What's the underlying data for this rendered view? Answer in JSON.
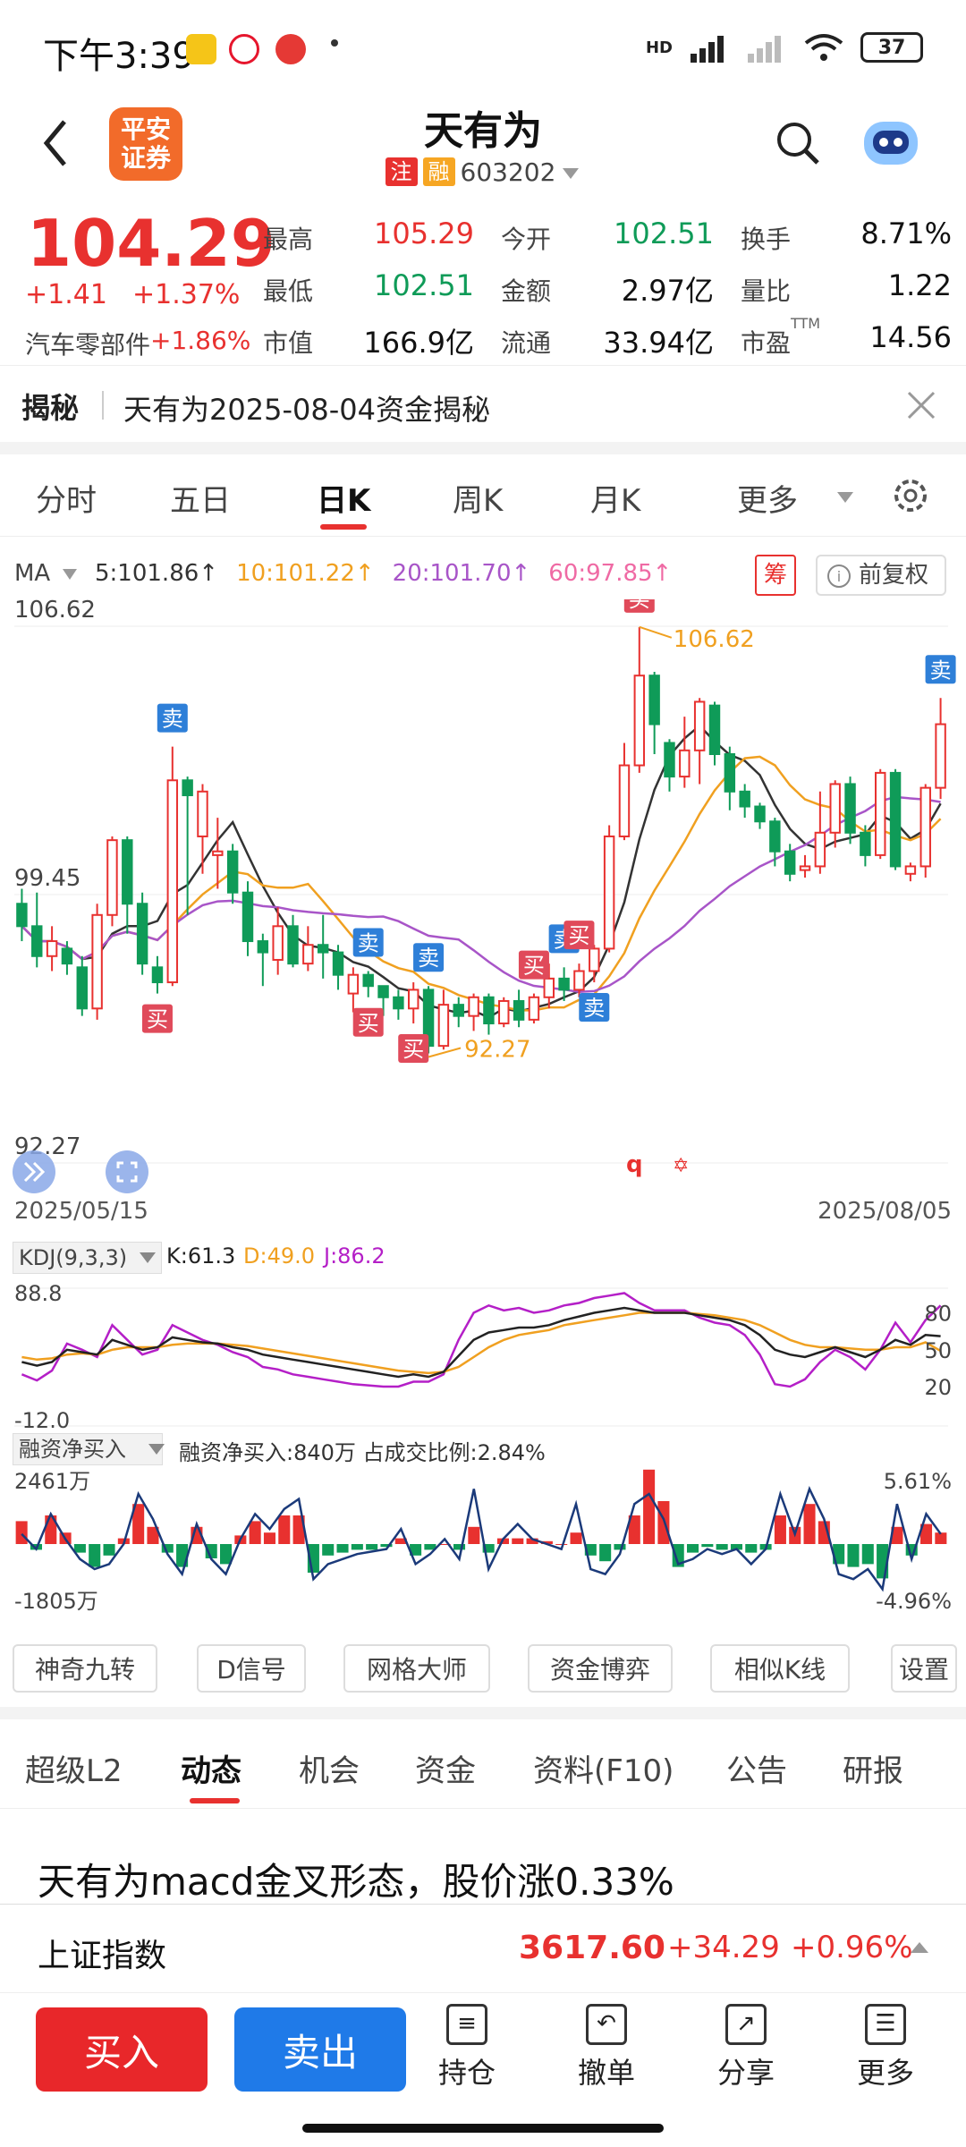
{
  "status": {
    "time": "下午3:39",
    "battery": "37",
    "network": "HD"
  },
  "header": {
    "logo_line1": "平安",
    "logo_line2": "证券",
    "title": "天有为",
    "tag_zhu": "注",
    "tag_rong": "融",
    "code": "603202",
    "colors": {
      "logo": "#f26b2a",
      "tag_zhu": "#e8312f",
      "tag_rong": "#f6a623"
    }
  },
  "quote": {
    "price": "104.29",
    "change": "+1.41",
    "change_pct": "+1.37%",
    "sector": "汽车零部件",
    "sector_pct": "+1.86%",
    "rows": [
      [
        {
          "label": "最高",
          "value": "105.29",
          "color": "red"
        },
        {
          "label": "今开",
          "value": "102.51",
          "color": "green"
        },
        {
          "label": "换手",
          "value": "8.71%",
          "color": "black"
        }
      ],
      [
        {
          "label": "最低",
          "value": "102.51",
          "color": "green"
        },
        {
          "label": "金额",
          "value": "2.97亿",
          "color": "black"
        },
        {
          "label": "量比",
          "value": "1.22",
          "color": "black"
        }
      ],
      [
        {
          "label": "市值",
          "value": "166.9亿",
          "color": "black"
        },
        {
          "label": "流通",
          "value": "33.94亿",
          "color": "black"
        },
        {
          "label": "市盈",
          "value": "14.56",
          "color": "black",
          "sup": "TTM"
        }
      ]
    ]
  },
  "reveal": {
    "label": "揭秘",
    "text": "天有为2025-08-04资金揭秘"
  },
  "period_tabs": [
    "分时",
    "五日",
    "日K",
    "周K",
    "月K",
    "更多"
  ],
  "period_active": 2,
  "ma_legend": {
    "ma_label": "MA",
    "items": [
      {
        "text": "5:101.86↑",
        "color": "#333333"
      },
      {
        "text": "10:101.22↑",
        "color": "#f0a020"
      },
      {
        "text": "20:101.70↑",
        "color": "#a855c8"
      },
      {
        "text": "60:97.85↑",
        "color": "#ef6aa4"
      }
    ],
    "chou": "筹",
    "fuquan": "前复权"
  },
  "chart_data": {
    "type": "candlestick",
    "y_labels": [
      "106.62",
      "99.45",
      "92.27"
    ],
    "ylim": [
      92.27,
      106.62
    ],
    "max_label": "106.62",
    "min_label": "92.27",
    "x_start": "2025/05/15",
    "x_end": "2025/08/05",
    "candles": [
      [
        99.2,
        98.6,
        99.6,
        98.2
      ],
      [
        98.6,
        97.8,
        99.5,
        97.5
      ],
      [
        97.8,
        98.2,
        98.6,
        97.4
      ],
      [
        98.0,
        97.6,
        98.2,
        97.3
      ],
      [
        97.5,
        96.4,
        97.8,
        96.2
      ],
      [
        96.4,
        98.9,
        99.2,
        96.1
      ],
      [
        98.9,
        100.9,
        101.0,
        98.6
      ],
      [
        100.9,
        99.2,
        101.0,
        98.4
      ],
      [
        99.2,
        97.6,
        99.5,
        97.3
      ],
      [
        97.5,
        97.1,
        97.8,
        96.8
      ],
      [
        97.1,
        102.5,
        103.4,
        97.0
      ],
      [
        102.5,
        102.1,
        102.6,
        98.9
      ],
      [
        101.0,
        102.2,
        102.4,
        100.0
      ],
      [
        100.5,
        100.6,
        101.5,
        99.6
      ],
      [
        100.6,
        99.5,
        100.8,
        99.2
      ],
      [
        99.5,
        98.2,
        99.8,
        97.8
      ],
      [
        98.2,
        97.9,
        98.4,
        97.0
      ],
      [
        97.7,
        98.6,
        99.1,
        97.3
      ],
      [
        98.6,
        97.6,
        98.9,
        97.5
      ],
      [
        97.6,
        98.1,
        98.6,
        97.4
      ],
      [
        98.1,
        97.9,
        98.9,
        97.2
      ],
      [
        97.9,
        97.3,
        98.1,
        96.9
      ],
      [
        96.8,
        97.3,
        97.5,
        96.3
      ],
      [
        97.3,
        97.0,
        97.4,
        96.7
      ],
      [
        97.0,
        96.7,
        97.0,
        96.2
      ],
      [
        96.7,
        96.4,
        96.9,
        96.1
      ],
      [
        96.4,
        96.9,
        97.1,
        96.0
      ],
      [
        96.9,
        95.4,
        97.0,
        95.2
      ],
      [
        95.4,
        96.5,
        96.9,
        95.3
      ],
      [
        96.5,
        96.2,
        96.7,
        95.9
      ],
      [
        96.2,
        96.7,
        96.8,
        95.8
      ],
      [
        96.7,
        96.0,
        96.8,
        95.7
      ],
      [
        96.0,
        96.6,
        96.7,
        95.9
      ],
      [
        96.6,
        96.1,
        96.9,
        95.9
      ],
      [
        96.1,
        96.7,
        96.8,
        96.0
      ],
      [
        96.7,
        97.2,
        97.6,
        96.4
      ],
      [
        97.2,
        96.9,
        97.5,
        96.6
      ],
      [
        96.9,
        97.4,
        97.6,
        96.7
      ],
      [
        97.4,
        98.0,
        98.1,
        97.1
      ],
      [
        98.0,
        101.0,
        101.3,
        97.9
      ],
      [
        101.0,
        102.9,
        103.5,
        100.9
      ],
      [
        102.9,
        105.3,
        106.6,
        102.7
      ],
      [
        105.3,
        104.0,
        105.4,
        103.2
      ],
      [
        103.5,
        102.6,
        103.6,
        102.2
      ],
      [
        102.6,
        103.3,
        104.2,
        102.3
      ],
      [
        103.3,
        104.6,
        104.7,
        102.4
      ],
      [
        104.5,
        103.2,
        104.6,
        102.9
      ],
      [
        103.2,
        102.2,
        103.4,
        101.7
      ],
      [
        102.2,
        101.8,
        102.4,
        101.5
      ],
      [
        101.8,
        101.4,
        101.9,
        101.2
      ],
      [
        101.4,
        100.6,
        101.5,
        100.2
      ],
      [
        100.6,
        100.0,
        100.8,
        99.8
      ],
      [
        100.1,
        100.2,
        100.5,
        99.9
      ],
      [
        100.2,
        101.1,
        102.2,
        100.0
      ],
      [
        101.1,
        102.4,
        102.5,
        100.7
      ],
      [
        102.4,
        101.1,
        102.6,
        100.8
      ],
      [
        101.1,
        100.5,
        101.3,
        100.2
      ],
      [
        100.5,
        102.7,
        102.8,
        100.4
      ],
      [
        102.7,
        100.2,
        102.8,
        100.1
      ],
      [
        100.0,
        100.2,
        100.3,
        99.8
      ],
      [
        100.2,
        102.3,
        102.4,
        99.9
      ],
      [
        102.3,
        104.0,
        104.7,
        102.0
      ]
    ],
    "signals": [
      {
        "text": "卖",
        "i": 10,
        "pos": "above",
        "color": "#2e7fd8"
      },
      {
        "text": "买",
        "i": 9,
        "pos": "below",
        "color": "#e04a5a"
      },
      {
        "text": "卖",
        "i": 23,
        "pos": "above",
        "color": "#2e7fd8"
      },
      {
        "text": "买",
        "i": 23,
        "pos": "below",
        "color": "#e04a5a"
      },
      {
        "text": "卖",
        "i": 27,
        "pos": "above",
        "color": "#2e7fd8"
      },
      {
        "text": "买",
        "i": 26,
        "pos": "below",
        "color": "#e04a5a"
      },
      {
        "text": "买",
        "i": 34,
        "pos": "above",
        "color": "#e04a5a"
      },
      {
        "text": "卖",
        "i": 36,
        "pos": "above",
        "color": "#2e7fd8"
      },
      {
        "text": "卖",
        "i": 38,
        "pos": "below",
        "color": "#2e7fd8"
      },
      {
        "text": "买",
        "i": 37,
        "pos": "above",
        "color": "#e04a5a"
      },
      {
        "text": "买",
        "i": 41,
        "pos": "above",
        "color": "#e04a5a"
      },
      {
        "text": "卖",
        "i": 61,
        "pos": "above",
        "color": "#2e7fd8"
      }
    ],
    "markers": [
      "q",
      "✡"
    ],
    "colors": {
      "up": "#e8312f",
      "down": "#0f9b58"
    }
  },
  "kdj": {
    "label": "KDJ(9,3,3)",
    "k": "K:61.3",
    "d": "D:49.0",
    "j": "J:86.2",
    "y_top": "88.8",
    "y_bottom": "-12.0",
    "right_ticks": [
      "80",
      "50",
      "20"
    ],
    "K": [
      40,
      37,
      40,
      50,
      48,
      46,
      58,
      54,
      50,
      52,
      60,
      58,
      56,
      55,
      52,
      50,
      46,
      44,
      42,
      40,
      38,
      36,
      34,
      32,
      30,
      28,
      30,
      28,
      32,
      45,
      58,
      64,
      66,
      68,
      68,
      70,
      74,
      77,
      80,
      82,
      84,
      82,
      80,
      80,
      80,
      78,
      76,
      74,
      70,
      62,
      50,
      46,
      44,
      48,
      52,
      48,
      44,
      50,
      58,
      54,
      62,
      61
    ],
    "D": [
      44,
      42,
      43,
      46,
      47,
      46,
      50,
      52,
      52,
      52,
      54,
      55,
      55,
      55,
      54,
      53,
      51,
      49,
      47,
      45,
      43,
      41,
      39,
      37,
      35,
      33,
      32,
      31,
      32,
      36,
      44,
      52,
      58,
      62,
      64,
      66,
      70,
      72,
      74,
      76,
      78,
      80,
      80,
      80,
      80,
      79,
      78,
      76,
      74,
      70,
      64,
      58,
      54,
      52,
      52,
      51,
      50,
      50,
      52,
      52,
      56,
      49
    ],
    "J": [
      30,
      25,
      33,
      55,
      50,
      44,
      70,
      58,
      46,
      50,
      70,
      64,
      58,
      54,
      48,
      44,
      36,
      34,
      30,
      28,
      26,
      24,
      22,
      21,
      20,
      20,
      24,
      24,
      30,
      58,
      80,
      86,
      82,
      84,
      80,
      82,
      86,
      88,
      92,
      94,
      96,
      88,
      82,
      82,
      82,
      76,
      72,
      70,
      62,
      46,
      22,
      20,
      26,
      40,
      50,
      44,
      34,
      50,
      72,
      56,
      74,
      86
    ]
  },
  "margin": {
    "label": "融资净买入",
    "desc": "融资净买入:840万 占成交比例:2.84%",
    "y_top": "2461万",
    "y_bottom": "-1805万",
    "r_top": "5.61%",
    "r_bottom": "-4.96%",
    "bars": [
      8,
      -2,
      10,
      4,
      -3,
      -8,
      -4,
      2,
      14,
      6,
      -3,
      -8,
      6,
      -5,
      -7,
      3,
      8,
      4,
      10,
      10,
      -10,
      -4,
      -3,
      -2,
      -2,
      -1,
      2,
      -4,
      -2,
      0,
      -2,
      6,
      -3,
      2,
      2,
      2,
      1,
      0,
      4,
      -4,
      -6,
      -2,
      10,
      26,
      15,
      -8,
      -3,
      -1,
      -2,
      -2,
      -3,
      -2,
      10,
      6,
      14,
      8,
      -7,
      -8,
      -7,
      -12,
      6,
      -4,
      7,
      4
    ],
    "line": [
      4,
      -2,
      12,
      2,
      -6,
      -10,
      -8,
      0,
      20,
      10,
      -4,
      -12,
      8,
      -6,
      -12,
      2,
      12,
      6,
      14,
      18,
      -14,
      -8,
      -6,
      -4,
      -3,
      -2,
      6,
      -8,
      -4,
      2,
      -6,
      22,
      -10,
      2,
      8,
      2,
      0,
      -2,
      16,
      -10,
      -12,
      -4,
      16,
      20,
      10,
      -8,
      -6,
      -2,
      -4,
      -2,
      -8,
      -2,
      20,
      4,
      22,
      10,
      -12,
      -14,
      -10,
      -18,
      16,
      -6,
      12,
      4
    ]
  },
  "tools": [
    "神奇九转",
    "D信号",
    "网格大师",
    "资金博弈",
    "相似K线",
    "设置"
  ],
  "content_tabs": [
    "超级L2",
    "动态",
    "机会",
    "资金",
    "资料(F10)",
    "公告",
    "研报"
  ],
  "content_active": 1,
  "article": {
    "title": "天有为macd金叉形态，股价涨0.33%"
  },
  "index": {
    "name": "上证指数",
    "value": "3617.60",
    "change": "+34.29",
    "pct": "+0.96%"
  },
  "bottom": {
    "buy": "买入",
    "sell": "卖出",
    "nav": [
      {
        "label": "持仓",
        "icon": "≡"
      },
      {
        "label": "撤单",
        "icon": "↶"
      },
      {
        "label": "分享",
        "icon": "↗"
      },
      {
        "label": "更多",
        "icon": "☰"
      }
    ]
  }
}
